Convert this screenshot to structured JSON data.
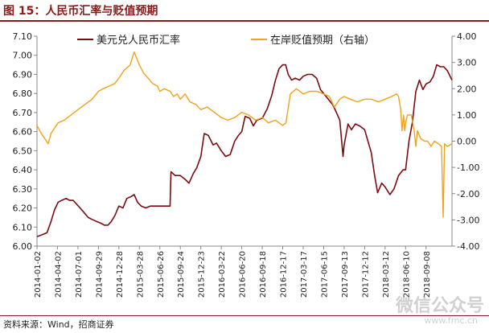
{
  "figure_title": "图 15：人民币汇率与贬值预期",
  "source": "资料来源：Wind，招商证券",
  "watermark": "微信公众号",
  "watermark_sub": "www.fmc.cn",
  "colors": {
    "usdcny": "#7b0c12",
    "depreciation": "#f0a21a",
    "accent": "#8b1a1a"
  },
  "chart_data": {
    "type": "line",
    "x_tick_labels": [
      "2014-01-02",
      "2014-04-02",
      "2014-07-01",
      "2014-09-29",
      "2014-12-28",
      "2015-03-28",
      "2015-06-26",
      "2015-09-24",
      "2015-12-23",
      "2016-03-22",
      "2016-06-20",
      "2016-09-18",
      "2016-12-17",
      "2017-03-17",
      "2017-06-15",
      "2017-09-13",
      "2017-12-12",
      "2018-03-12",
      "2018-06-10",
      "2018-09-08"
    ],
    "xlim": [
      "2014-01-02",
      "2018-12-31"
    ],
    "y_left": {
      "ylim": [
        6.0,
        7.1
      ],
      "ticks": [
        "6.00",
        "6.10",
        "6.20",
        "6.30",
        "6.40",
        "6.50",
        "6.60",
        "6.70",
        "6.80",
        "6.90",
        "7.00",
        "7.10"
      ]
    },
    "y_right": {
      "ylim": [
        -4.0,
        4.0
      ],
      "ticks": [
        "-4.00",
        "-3.00",
        "-2.00",
        "-1.00",
        "0.00",
        "1.00",
        "2.00",
        "3.00",
        "4.00"
      ]
    },
    "grid": false,
    "legend_position": "top",
    "series": [
      {
        "name": "美元兑人民币汇率",
        "axis": "left",
        "points": [
          [
            "2014-01-02",
            6.05
          ],
          [
            "2014-01-25",
            6.06
          ],
          [
            "2014-02-15",
            6.07
          ],
          [
            "2014-03-05",
            6.13
          ],
          [
            "2014-03-20",
            6.19
          ],
          [
            "2014-04-05",
            6.23
          ],
          [
            "2014-04-20",
            6.24
          ],
          [
            "2014-05-10",
            6.25
          ],
          [
            "2014-05-25",
            6.24
          ],
          [
            "2014-06-10",
            6.24
          ],
          [
            "2014-06-25",
            6.22
          ],
          [
            "2014-07-10",
            6.2
          ],
          [
            "2014-07-25",
            6.18
          ],
          [
            "2014-08-15",
            6.15
          ],
          [
            "2014-09-01",
            6.14
          ],
          [
            "2014-09-20",
            6.13
          ],
          [
            "2014-10-10",
            6.12
          ],
          [
            "2014-10-25",
            6.11
          ],
          [
            "2014-11-10",
            6.11
          ],
          [
            "2014-11-25",
            6.13
          ],
          [
            "2014-12-10",
            6.16
          ],
          [
            "2014-12-28",
            6.21
          ],
          [
            "2015-01-15",
            6.2
          ],
          [
            "2015-02-01",
            6.25
          ],
          [
            "2015-02-20",
            6.26
          ],
          [
            "2015-03-05",
            6.27
          ],
          [
            "2015-03-20",
            6.23
          ],
          [
            "2015-04-05",
            6.21
          ],
          [
            "2015-04-25",
            6.2
          ],
          [
            "2015-05-15",
            6.21
          ],
          [
            "2015-06-05",
            6.21
          ],
          [
            "2015-07-01",
            6.21
          ],
          [
            "2015-07-25",
            6.21
          ],
          [
            "2015-08-10",
            6.21
          ],
          [
            "2015-08-12",
            6.32
          ],
          [
            "2015-08-14",
            6.39
          ],
          [
            "2015-09-01",
            6.37
          ],
          [
            "2015-09-24",
            6.37
          ],
          [
            "2015-10-15",
            6.35
          ],
          [
            "2015-11-01",
            6.33
          ],
          [
            "2015-11-20",
            6.38
          ],
          [
            "2015-12-05",
            6.41
          ],
          [
            "2015-12-23",
            6.47
          ],
          [
            "2016-01-07",
            6.59
          ],
          [
            "2016-01-25",
            6.58
          ],
          [
            "2016-02-15",
            6.53
          ],
          [
            "2016-03-01",
            6.54
          ],
          [
            "2016-03-22",
            6.5
          ],
          [
            "2016-04-10",
            6.47
          ],
          [
            "2016-04-30",
            6.48
          ],
          [
            "2016-05-20",
            6.55
          ],
          [
            "2016-06-05",
            6.58
          ],
          [
            "2016-06-20",
            6.6
          ],
          [
            "2016-07-05",
            6.68
          ],
          [
            "2016-07-25",
            6.67
          ],
          [
            "2016-08-10",
            6.63
          ],
          [
            "2016-08-25",
            6.66
          ],
          [
            "2016-09-18",
            6.67
          ],
          [
            "2016-10-10",
            6.72
          ],
          [
            "2016-10-30",
            6.79
          ],
          [
            "2016-11-15",
            6.87
          ],
          [
            "2016-12-01",
            6.93
          ],
          [
            "2016-12-17",
            6.95
          ],
          [
            "2016-12-30",
            6.95
          ],
          [
            "2017-01-10",
            6.9
          ],
          [
            "2017-01-25",
            6.87
          ],
          [
            "2017-02-10",
            6.88
          ],
          [
            "2017-03-01",
            6.87
          ],
          [
            "2017-03-17",
            6.89
          ],
          [
            "2017-04-05",
            6.9
          ],
          [
            "2017-04-25",
            6.9
          ],
          [
            "2017-05-15",
            6.88
          ],
          [
            "2017-06-01",
            6.82
          ],
          [
            "2017-06-15",
            6.8
          ],
          [
            "2017-07-05",
            6.77
          ],
          [
            "2017-07-25",
            6.74
          ],
          [
            "2017-08-10",
            6.7
          ],
          [
            "2017-08-25",
            6.66
          ],
          [
            "2017-09-08",
            6.47
          ],
          [
            "2017-09-13",
            6.53
          ],
          [
            "2017-09-30",
            6.64
          ],
          [
            "2017-10-15",
            6.61
          ],
          [
            "2017-11-01",
            6.64
          ],
          [
            "2017-11-20",
            6.63
          ],
          [
            "2017-12-12",
            6.61
          ],
          [
            "2018-01-10",
            6.49
          ],
          [
            "2018-01-25",
            6.37
          ],
          [
            "2018-02-07",
            6.28
          ],
          [
            "2018-02-25",
            6.33
          ],
          [
            "2018-03-12",
            6.31
          ],
          [
            "2018-04-02",
            6.27
          ],
          [
            "2018-04-20",
            6.3
          ],
          [
            "2018-05-10",
            6.37
          ],
          [
            "2018-05-30",
            6.4
          ],
          [
            "2018-06-10",
            6.4
          ],
          [
            "2018-06-25",
            6.55
          ],
          [
            "2018-07-10",
            6.65
          ],
          [
            "2018-07-25",
            6.81
          ],
          [
            "2018-08-10",
            6.87
          ],
          [
            "2018-08-25",
            6.82
          ],
          [
            "2018-09-08",
            6.85
          ],
          [
            "2018-09-25",
            6.86
          ],
          [
            "2018-10-10",
            6.89
          ],
          [
            "2018-10-25",
            6.95
          ],
          [
            "2018-11-10",
            6.94
          ],
          [
            "2018-11-25",
            6.94
          ],
          [
            "2018-12-10",
            6.92
          ],
          [
            "2018-12-31",
            6.87
          ]
        ]
      },
      {
        "name": "在岸贬值预期（右轴）",
        "axis": "right",
        "points": [
          [
            "2014-01-02",
            0.6
          ],
          [
            "2014-01-20",
            0.3
          ],
          [
            "2014-02-05",
            0.1
          ],
          [
            "2014-02-20",
            -0.1
          ],
          [
            "2014-03-05",
            0.3
          ],
          [
            "2014-03-20",
            0.5
          ],
          [
            "2014-04-05",
            0.7
          ],
          [
            "2014-05-01",
            0.8
          ],
          [
            "2014-06-01",
            1.0
          ],
          [
            "2014-07-01",
            1.2
          ],
          [
            "2014-08-01",
            1.4
          ],
          [
            "2014-09-01",
            1.6
          ],
          [
            "2014-09-29",
            1.9
          ],
          [
            "2014-10-20",
            2.0
          ],
          [
            "2014-11-15",
            2.1
          ],
          [
            "2014-12-10",
            2.2
          ],
          [
            "2014-12-28",
            2.4
          ],
          [
            "2015-01-20",
            2.7
          ],
          [
            "2015-02-15",
            2.9
          ],
          [
            "2015-03-05",
            3.4
          ],
          [
            "2015-03-28",
            2.9
          ],
          [
            "2015-04-15",
            2.6
          ],
          [
            "2015-05-05",
            2.4
          ],
          [
            "2015-05-25",
            2.2
          ],
          [
            "2015-06-15",
            2.1
          ],
          [
            "2015-06-26",
            1.9
          ],
          [
            "2015-07-15",
            2.0
          ],
          [
            "2015-08-10",
            1.9
          ],
          [
            "2015-08-25",
            1.7
          ],
          [
            "2015-09-10",
            1.8
          ],
          [
            "2015-09-24",
            1.6
          ],
          [
            "2015-10-15",
            1.8
          ],
          [
            "2015-11-05",
            1.5
          ],
          [
            "2015-12-01",
            1.4
          ],
          [
            "2015-12-23",
            1.2
          ],
          [
            "2016-01-20",
            1.3
          ],
          [
            "2016-02-20",
            1.1
          ],
          [
            "2016-03-22",
            0.9
          ],
          [
            "2016-04-20",
            0.8
          ],
          [
            "2016-05-20",
            0.9
          ],
          [
            "2016-06-20",
            1.1
          ],
          [
            "2016-07-20",
            1.0
          ],
          [
            "2016-08-20",
            0.8
          ],
          [
            "2016-09-18",
            0.9
          ],
          [
            "2016-10-15",
            0.7
          ],
          [
            "2016-11-15",
            0.8
          ],
          [
            "2016-12-17",
            0.6
          ],
          [
            "2016-12-31",
            0.7
          ],
          [
            "2017-01-20",
            1.8
          ],
          [
            "2017-02-15",
            2.0
          ],
          [
            "2017-03-17",
            1.8
          ],
          [
            "2017-04-15",
            1.9
          ],
          [
            "2017-05-15",
            1.9
          ],
          [
            "2017-06-15",
            1.8
          ],
          [
            "2017-07-10",
            1.7
          ],
          [
            "2017-08-01",
            1.3
          ],
          [
            "2017-08-25",
            1.6
          ],
          [
            "2017-09-13",
            1.7
          ],
          [
            "2017-10-10",
            1.6
          ],
          [
            "2017-11-10",
            1.5
          ],
          [
            "2017-12-12",
            1.6
          ],
          [
            "2018-01-10",
            1.6
          ],
          [
            "2018-02-10",
            1.5
          ],
          [
            "2018-03-12",
            1.6
          ],
          [
            "2018-04-10",
            1.7
          ],
          [
            "2018-05-01",
            1.8
          ],
          [
            "2018-05-10",
            1.7
          ],
          [
            "2018-05-20",
            1.2
          ],
          [
            "2018-05-25",
            0.4
          ],
          [
            "2018-06-01",
            1.0
          ],
          [
            "2018-06-06",
            0.4
          ],
          [
            "2018-06-10",
            0.7
          ],
          [
            "2018-06-18",
            1.0
          ],
          [
            "2018-06-28",
            1.0
          ],
          [
            "2018-07-05",
            1.0
          ],
          [
            "2018-07-18",
            0.4
          ],
          [
            "2018-07-25",
            -0.2
          ],
          [
            "2018-08-01",
            0.4
          ],
          [
            "2018-08-15",
            0.1
          ],
          [
            "2018-09-01",
            0.0
          ],
          [
            "2018-09-15",
            0.0
          ],
          [
            "2018-09-30",
            -0.2
          ],
          [
            "2018-10-15",
            0.0
          ],
          [
            "2018-11-01",
            -0.1
          ],
          [
            "2018-11-15",
            -0.2
          ],
          [
            "2018-11-22",
            -2.9
          ],
          [
            "2018-11-28",
            -0.1
          ],
          [
            "2018-12-10",
            -0.2
          ],
          [
            "2018-12-31",
            -0.1
          ]
        ]
      }
    ]
  }
}
